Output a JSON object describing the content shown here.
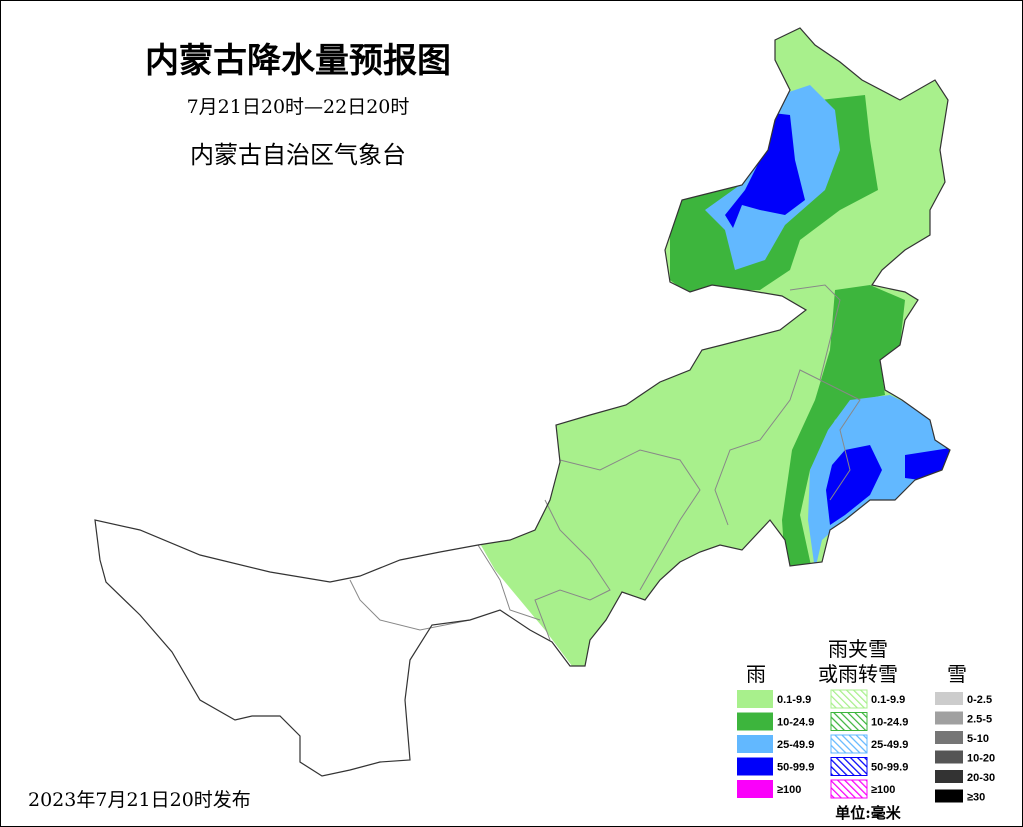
{
  "header": {
    "title": "内蒙古降水量预报图",
    "period": "7月21日20时—22日20时",
    "issuer": "内蒙古自治区气象台"
  },
  "footer": {
    "published": "2023年7月21日20时发布"
  },
  "legend": {
    "rain": {
      "title": "雨",
      "items": [
        {
          "label": "0.1-9.9",
          "color": "#a8f08c"
        },
        {
          "label": "10-24.9",
          "color": "#3db53d"
        },
        {
          "label": "25-49.9",
          "color": "#62b8ff"
        },
        {
          "label": "50-99.9",
          "color": "#0000fa"
        },
        {
          "label": "≥100",
          "color": "#fa00fa"
        }
      ]
    },
    "sleet": {
      "title_lines": [
        "雨夹雪",
        "或雨转雪"
      ],
      "items": [
        {
          "label": "0.1-9.9",
          "color": "#a8f08c"
        },
        {
          "label": "10-24.9",
          "color": "#3db53d"
        },
        {
          "label": "25-49.9",
          "color": "#62b8ff"
        },
        {
          "label": "50-99.9",
          "color": "#0000fa"
        },
        {
          "label": "≥100",
          "color": "#fa00fa"
        }
      ]
    },
    "snow": {
      "title": "雪",
      "items": [
        {
          "label": "0-2.5",
          "color": "#cccccc"
        },
        {
          "label": "2.5-5",
          "color": "#a0a0a0"
        },
        {
          "label": "5-10",
          "color": "#767676"
        },
        {
          "label": "10-20",
          "color": "#555555"
        },
        {
          "label": "20-30",
          "color": "#333333"
        },
        {
          "label": "≥30",
          "color": "#000000"
        }
      ]
    },
    "unit": "单位:毫米"
  }
}
